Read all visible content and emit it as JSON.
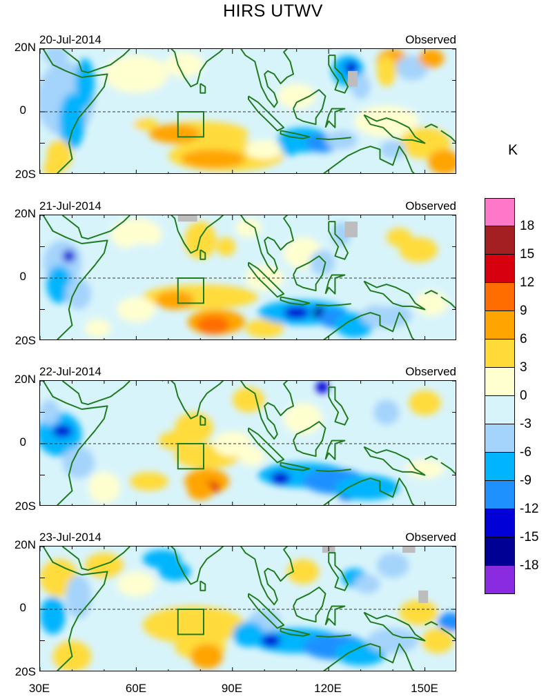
{
  "title": "HIRS UTWV",
  "panels": [
    {
      "date": "20-Jul-2014",
      "label": "Observed"
    },
    {
      "date": "21-Jul-2014",
      "label": "Observed"
    },
    {
      "date": "22-Jul-2014",
      "label": "Observed"
    },
    {
      "date": "23-Jul-2014",
      "label": "Observed"
    }
  ],
  "lat_labels": [
    "20N",
    "0",
    "20S"
  ],
  "lon_labels": [
    "30E",
    "60E",
    "90E",
    "120E",
    "150E"
  ],
  "colorbar": {
    "unit": "K",
    "labels": [
      "18",
      "15",
      "12",
      "9",
      "6",
      "3",
      "0",
      "-3",
      "-6",
      "-9",
      "-12",
      "-15",
      "-18"
    ],
    "colors": [
      "#ff77c8",
      "#a41f22",
      "#d7000e",
      "#ff6d00",
      "#ffa400",
      "#ffdb3a",
      "#ffffd0",
      "#d8f4fb",
      "#a4d3fb",
      "#00b4fd",
      "#1e90ff",
      "#0000d6",
      "#000094",
      "#8a2be2"
    ]
  },
  "map_colors": {
    "land_outline": "#1e7b1e",
    "missing": "#bdbdbd",
    "equator": "#333333"
  },
  "chart_data": {
    "type": "heatmap",
    "title": "HIRS UTWV",
    "unit": "K",
    "x_range": [
      30,
      160
    ],
    "y_range": [
      -20,
      20
    ],
    "xticks": [
      "30E",
      "60E",
      "90E",
      "120E",
      "150E"
    ],
    "yticks": [
      "20N",
      "0",
      "20S"
    ],
    "contour_levels": [
      -18,
      -15,
      -12,
      -9,
      -6,
      -3,
      0,
      3,
      6,
      9,
      12,
      15,
      18
    ],
    "box_region": {
      "lon": [
        73,
        81
      ],
      "lat": [
        -8,
        0
      ]
    },
    "panels": [
      "20-Jul-2014",
      "21-Jul-2014",
      "22-Jul-2014",
      "23-Jul-2014"
    ]
  }
}
